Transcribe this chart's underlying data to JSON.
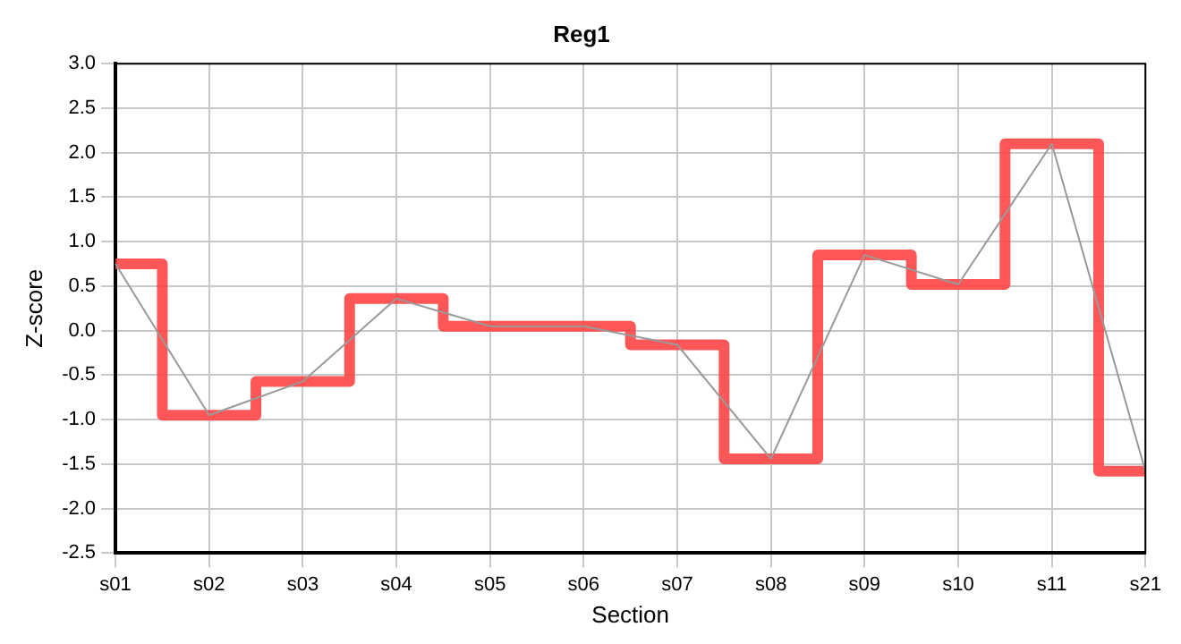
{
  "chart_data": {
    "type": "step",
    "title": "Reg1",
    "xlabel": "Section",
    "ylabel": "Z-score",
    "categories": [
      "s01",
      "s02",
      "s03",
      "s04",
      "s05",
      "s06",
      "s07",
      "s08",
      "s09",
      "s10",
      "s11",
      "s21"
    ],
    "series": [
      {
        "type": "line",
        "color": "#999999",
        "values": [
          0.75,
          -0.95,
          -0.57,
          0.36,
          0.05,
          0.05,
          -0.16,
          -1.44,
          0.85,
          0.52,
          2.1,
          -1.58
        ]
      },
      {
        "color": "#ff4040",
        "values": [
          0.75,
          -0.95,
          -0.57,
          0.36,
          0.05,
          0.05,
          -0.16,
          -1.44,
          0.85,
          0.52,
          2.1,
          -1.58
        ]
      }
    ],
    "ylim": [
      -2.5,
      3
    ],
    "yticks": [
      {
        "value": -2.5,
        "label": "-2.5"
      },
      {
        "value": -2,
        "label": "-2.0"
      },
      {
        "value": -1.5,
        "label": "-1.5"
      },
      {
        "value": -1,
        "label": "-1.0"
      },
      {
        "value": -0.5,
        "label": "-0.5"
      },
      {
        "value": 0,
        "label": "0.0"
      },
      {
        "value": 0.5,
        "label": "0.5"
      },
      {
        "value": 1,
        "label": "1.0"
      },
      {
        "value": 1.5,
        "label": "1.5"
      },
      {
        "value": 2,
        "label": "2.0"
      },
      {
        "value": 2.5,
        "label": "2.5"
      },
      {
        "value": 3,
        "label": "3.0"
      }
    ],
    "grid": true,
    "legend": false,
    "marker": "none",
    "line_style": "solid"
  }
}
